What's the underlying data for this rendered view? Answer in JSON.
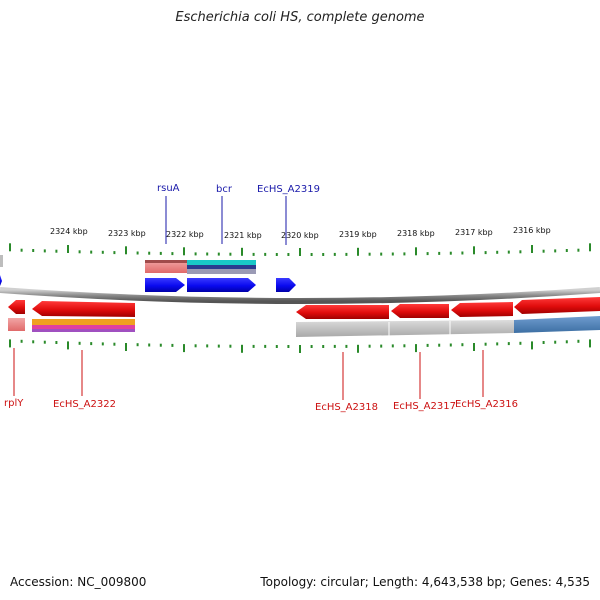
{
  "title": "Escherichia coli HS, complete genome",
  "footer": {
    "accession": "Accession: NC_009800",
    "summary": "Topology: circular; Length: 4,643,538 bp; Genes: 4,535"
  },
  "ruler": {
    "labels": [
      "2324 kbp",
      "2323 kbp",
      "2322 kbp",
      "2321 kbp",
      "2320 kbp",
      "2319 kbp",
      "2318 kbp",
      "2317 kbp",
      "2316 kbp"
    ]
  },
  "genes_top": [
    {
      "name": "rsuA"
    },
    {
      "name": "bcr"
    },
    {
      "name": "EcHS_A2319"
    }
  ],
  "genes_bottom": [
    {
      "name": "rplY"
    },
    {
      "name": "EcHS_A2322"
    },
    {
      "name": "EcHS_A2318"
    },
    {
      "name": "EcHS_A2317"
    },
    {
      "name": "EcHS_A2316"
    }
  ],
  "colors": {
    "forward_gene": "#1010ee",
    "reverse_gene": "#e51010",
    "tick": "#2a8a2a",
    "backbone": "#8a8a8a",
    "label_top": "#1a1aaa",
    "label_bottom": "#cc1111"
  }
}
